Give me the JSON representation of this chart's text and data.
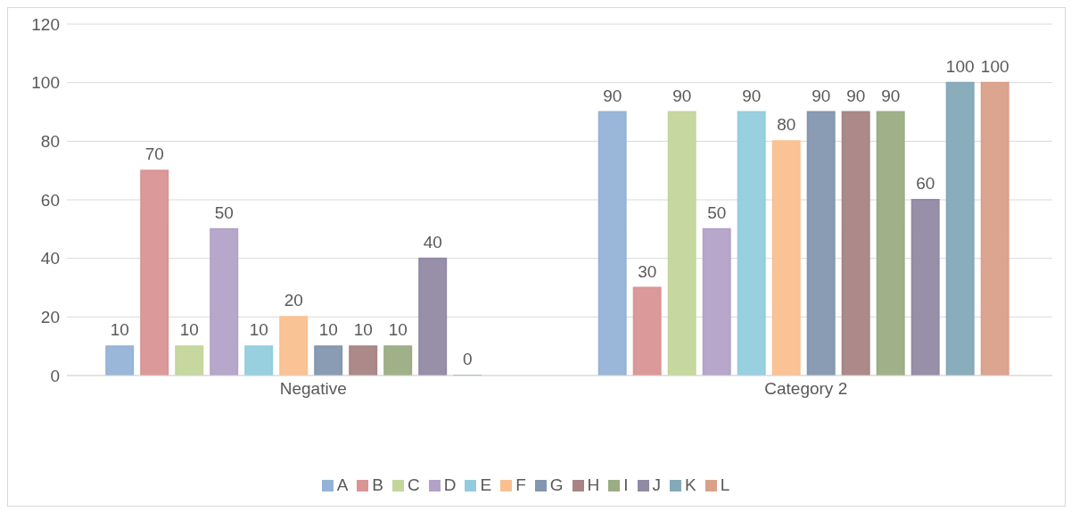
{
  "chart_data": {
    "type": "bar",
    "categories": [
      "Negative",
      "Category 2"
    ],
    "series": [
      {
        "name": "A",
        "color": "#95b3d7",
        "values": [
          10,
          90
        ]
      },
      {
        "name": "B",
        "color": "#d99594",
        "values": [
          70,
          30
        ]
      },
      {
        "name": "C",
        "color": "#c3d69b",
        "values": [
          10,
          90
        ]
      },
      {
        "name": "D",
        "color": "#b3a2c7",
        "values": [
          50,
          50
        ]
      },
      {
        "name": "E",
        "color": "#93cddd",
        "values": [
          10,
          90
        ]
      },
      {
        "name": "F",
        "color": "#fac090",
        "values": [
          20,
          80
        ]
      },
      {
        "name": "G",
        "color": "#8496b0",
        "values": [
          10,
          90
        ]
      },
      {
        "name": "H",
        "color": "#a88484",
        "values": [
          10,
          90
        ]
      },
      {
        "name": "I",
        "color": "#9bad84",
        "values": [
          10,
          90
        ]
      },
      {
        "name": "J",
        "color": "#918aa3",
        "values": [
          40,
          60
        ]
      },
      {
        "name": "K",
        "color": "#84a9b8",
        "values": [
          0,
          100
        ]
      },
      {
        "name": "L",
        "color": "#d9a08a",
        "values": [
          null,
          100
        ]
      }
    ],
    "ylim": [
      0,
      120
    ],
    "yticks": [
      0,
      20,
      40,
      60,
      80,
      100,
      120
    ],
    "grid": "y",
    "legend": "bottom",
    "data_labels": true
  }
}
